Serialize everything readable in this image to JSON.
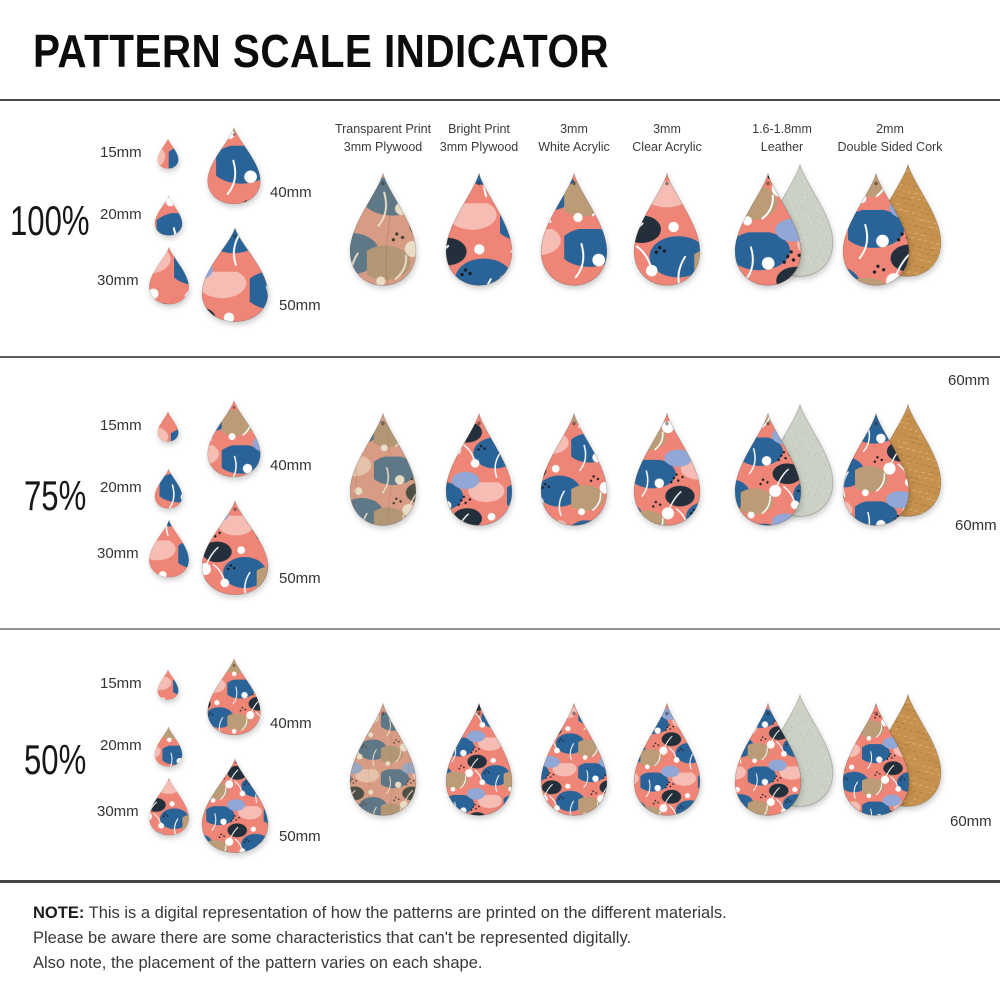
{
  "title": "PATTERN SCALE INDICATOR",
  "columns": [
    {
      "line1": "Transparent Print",
      "line2": "3mm Plywood",
      "finish": "muted",
      "back": null
    },
    {
      "line1": "Bright Print",
      "line2": "3mm Plywood",
      "finish": "bright",
      "back": null
    },
    {
      "line1": "3mm",
      "line2": "White Acrylic",
      "finish": "bright",
      "back": null
    },
    {
      "line1": "3mm",
      "line2": "Clear Acrylic",
      "finish": "bright",
      "back": null
    },
    {
      "line1": "1.6-1.8mm",
      "line2": "Leather",
      "finish": "bright",
      "back": "leather"
    },
    {
      "line1": "2mm",
      "line2": "Double Sided Cork",
      "finish": "bright",
      "back": "cork"
    }
  ],
  "rows": [
    {
      "scale_label": "100%",
      "scale": 1.0
    },
    {
      "scale_label": "75%",
      "scale": 0.75
    },
    {
      "scale_label": "50%",
      "scale": 0.5
    }
  ],
  "size_labels": [
    "15mm",
    "20mm",
    "30mm",
    "40mm",
    "50mm"
  ],
  "large_size_label": "60mm",
  "note": {
    "prefix": "NOTE:",
    "line1": "This is a digital representation of how the patterns are printed on the different materials.",
    "line2": "Please be aware there are some characteristics that can't be represented digitally.",
    "line3": "Also note, the placement of the pattern varies on each shape."
  },
  "pattern_colors": {
    "bright": {
      "base": "#ee8577",
      "pink": "#f6bdb4",
      "blue": "#2a6397",
      "navy": "#232f3a",
      "tan": "#bb9c76",
      "peri": "#92a7d6",
      "white": "#ffffff",
      "black": "#171b20"
    },
    "muted": {
      "base": "#d89c84",
      "pink": "#e6c2ab",
      "blue": "#5f7888",
      "navy": "#4d4f45",
      "tan": "#b39775",
      "peri": "#9aa7bf",
      "white": "#eaddc6",
      "black": "#403c32"
    },
    "leather_back": {
      "base": "#ccd1c6",
      "light": "#e0e5da",
      "dark": "#b6bbb1"
    },
    "cork_back": {
      "base": "#c6914d",
      "light": "#e2b97e",
      "dark": "#a2753c"
    }
  }
}
